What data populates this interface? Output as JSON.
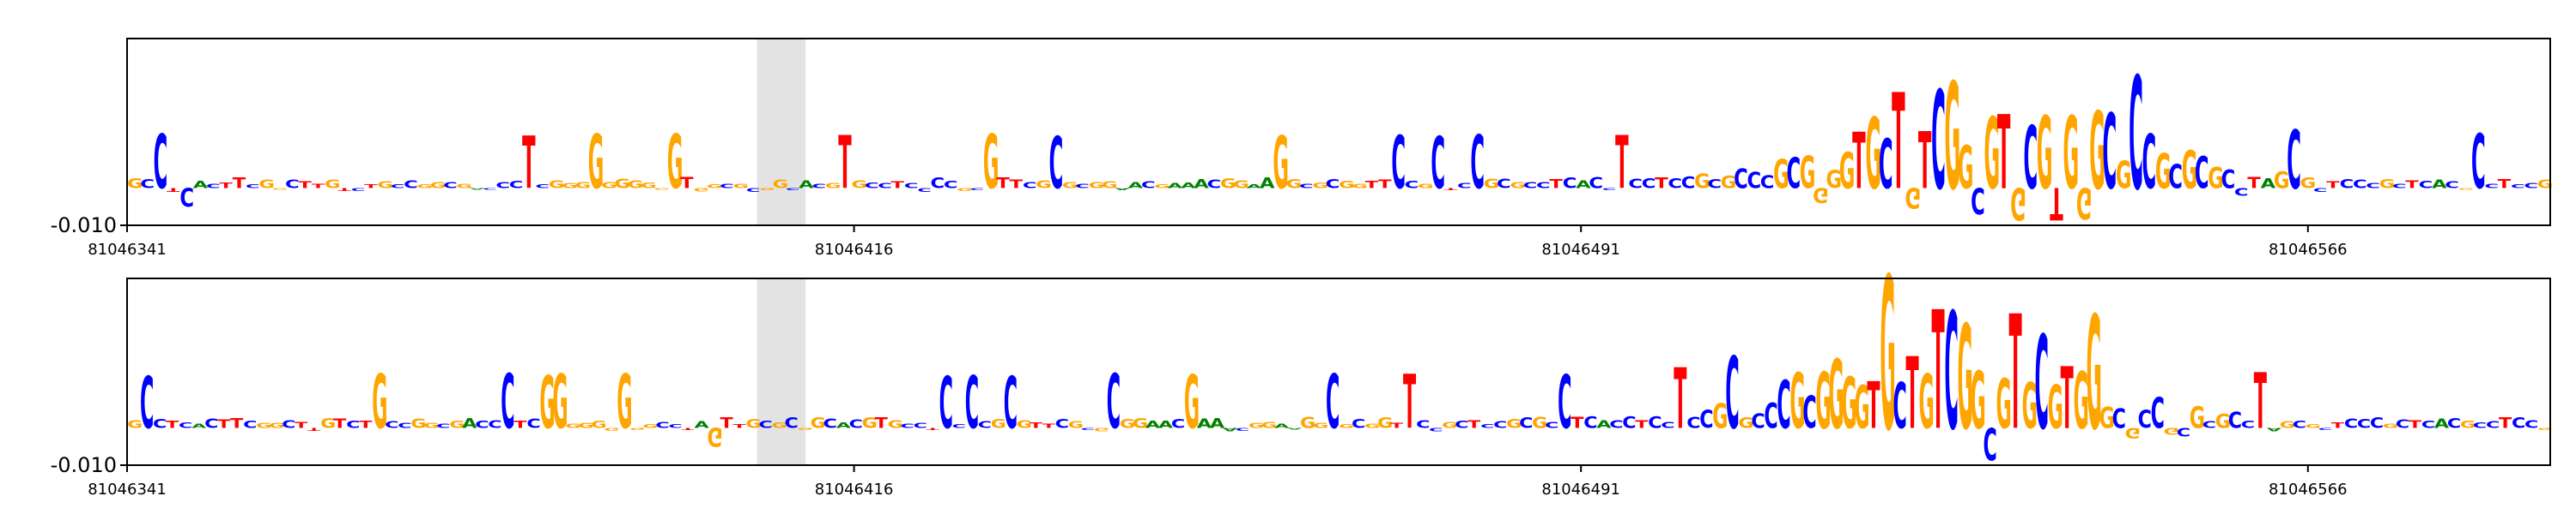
{
  "chart_data": [
    {
      "type": "sequence-logo",
      "panel": "top",
      "x_range": [
        81046341,
        81046591
      ],
      "y_tick_label": "-0.010",
      "x_ticks": [
        {
          "value": 81046341,
          "label": "81046341"
        },
        {
          "value": 81046416,
          "label": "81046416"
        },
        {
          "value": 81046491,
          "label": "81046491"
        },
        {
          "value": 81046566,
          "label": "81046566"
        }
      ],
      "highlight_region": [
        81046406,
        81046411
      ],
      "sequence": "GCCTCACTTCGGCTTGTCTGCCGGCGACCCTCGGGGGGGGGGTGGCGCGGCACGTGCCTCCCCGCGTTCGCGCGGAACGAAACGGAAGGCGCGGTTCCGCTCCGCGCCTCACCTCCTCCGCGCCCGCGGGGTGCTGTCGGCGTGCGTGGGCGCCGCGCGCCTAGCGCTCCCGCTCACGCCTCCG"
    },
    {
      "type": "sequence-logo",
      "panel": "bottom",
      "x_range": [
        81046341,
        81046591
      ],
      "y_tick_label": "-0.010",
      "x_ticks": [
        {
          "value": 81046341,
          "label": "81046341"
        },
        {
          "value": 81046416,
          "label": "81046416"
        },
        {
          "value": 81046491,
          "label": "81046491"
        },
        {
          "value": 81046566,
          "label": "81046566"
        }
      ],
      "highlight_region": [
        81046406,
        81046411
      ],
      "sequence": "GCCTCACTTCGGCTTGTCTGCCGGCGACCCTCGGGGGGGGGCCTAGTTGCGCGGCACGTGCCTCCCCGCGTTCGCGCGGAACGAAACGGAAGGCGCGGTTCCGCTCCGCGCCTCACCTCCTCCGCGCCCGCGGGGTGCTGTCGGCGTGCGTGGGCGCCGCGCGCCTAGCGCTCCCGCTCACGCCTCCG"
    }
  ],
  "colors": {
    "A": "#008000",
    "C": "#0000ff",
    "G": "#ffa500",
    "T": "#ff0000",
    "highlight": "#e3e3e3",
    "axis": "#000000"
  }
}
